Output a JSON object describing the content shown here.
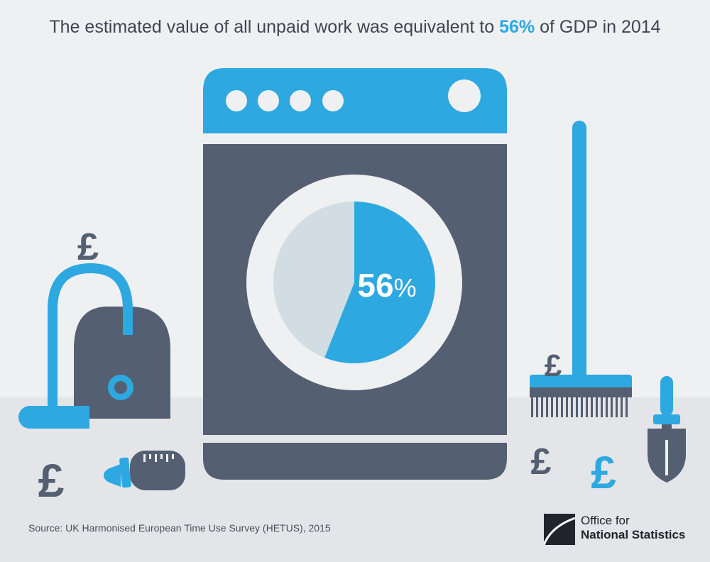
{
  "headline": {
    "prefix": "The estimated value of all unpaid work was equivalent to ",
    "highlight": "56%",
    "suffix": " of GDP in 2014"
  },
  "chart_data": {
    "type": "pie",
    "title": "The estimated value of all unpaid work was equivalent to 56% of GDP in 2014",
    "slices": [
      {
        "value": 56,
        "color": "#2ea8e0"
      },
      {
        "value": 44,
        "color": "#d2dce3"
      }
    ],
    "center_label": {
      "number": "56",
      "unit": "%"
    }
  },
  "icons": {
    "pound_glyph": "£",
    "items": [
      "vacuum-cleaner-icon",
      "washing-machine-icon",
      "broom-icon",
      "baby-bottle-icon",
      "trowel-icon",
      "pound-icon"
    ]
  },
  "colors": {
    "accent": "#2ea8e0",
    "dark": "#555f72",
    "background": "#eef0f2",
    "floor": "#e3e5e8"
  },
  "footer": {
    "source": "Source: UK Harmonised European Time Use Survey (HETUS), 2015",
    "logo_line1": "Office for",
    "logo_line2": "National Statistics"
  }
}
